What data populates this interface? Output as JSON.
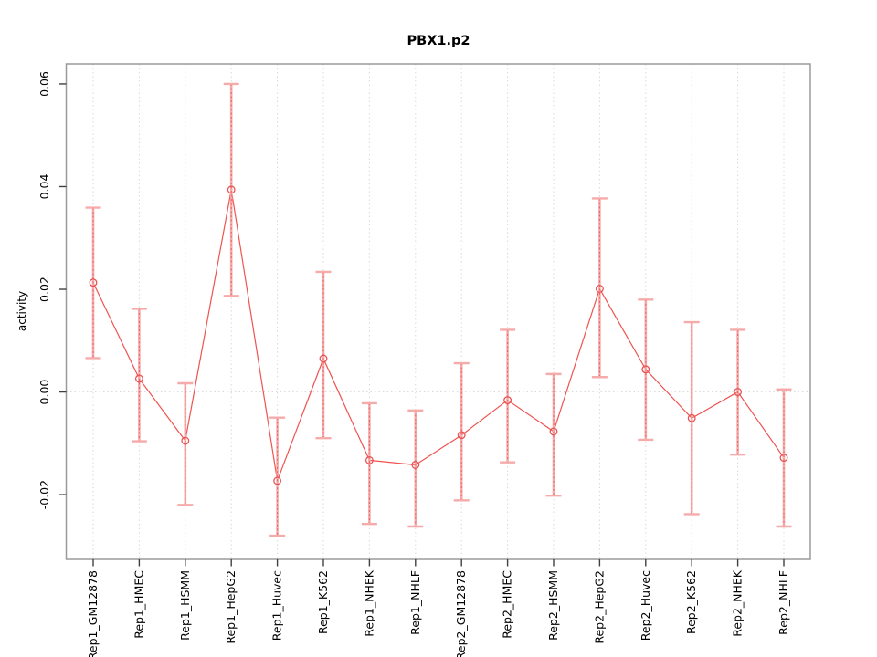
{
  "window": {
    "background": "#ffffff"
  },
  "chart_data": {
    "type": "scatter",
    "subtype": "points-with-error-bars-and-connecting-line",
    "title": "PBX1.p2",
    "xlabel": "",
    "ylabel": "activity",
    "ylim": [
      -0.0326,
      0.0639
    ],
    "yticks": [
      -0.02,
      0.0,
      0.02,
      0.04,
      0.06
    ],
    "ytick_labels": [
      "-0.02",
      "0.00",
      "0.02",
      "0.04",
      "0.06"
    ],
    "grid": "vertical dotted gridline at each category; horizontal dotted line at y=0",
    "legend_position": "none",
    "marker": "open-circle",
    "categories": [
      "Rep1_GM12878",
      "Rep1_HMEC",
      "Rep1_HSMM",
      "Rep1_HepG2",
      "Rep1_Huvec",
      "Rep1_K562",
      "Rep1_NHEK",
      "Rep1_NHLF",
      "Rep2_GM12878",
      "Rep2_HMEC",
      "Rep2_HSMM",
      "Rep2_HepG2",
      "Rep2_Huvec",
      "Rep2_K562",
      "Rep2_NHEK",
      "Rep2_NHLF"
    ],
    "series": [
      {
        "name": "activity",
        "values": [
          0.0213,
          0.0026,
          -0.0095,
          0.0394,
          -0.0173,
          0.0065,
          -0.0133,
          -0.0142,
          -0.0084,
          -0.0016,
          -0.0077,
          0.0201,
          0.0044,
          -0.0051,
          0.0,
          -0.0128
        ],
        "error_low": [
          0.0066,
          -0.0096,
          -0.022,
          0.0187,
          -0.028,
          -0.009,
          -0.0257,
          -0.0262,
          -0.0211,
          -0.0137,
          -0.0202,
          0.0029,
          -0.0093,
          -0.0238,
          -0.0122,
          -0.0262
        ],
        "error_high": [
          0.0359,
          0.0162,
          0.0017,
          0.06,
          -0.005,
          0.0234,
          -0.0022,
          -0.0036,
          0.0056,
          0.0121,
          0.0035,
          0.0377,
          0.018,
          0.0136,
          0.0121,
          0.0005
        ]
      }
    ],
    "colors": {
      "series_line": "#ef5350",
      "marker_stroke": "#e85454",
      "error_bar_fill": "#f6abab",
      "error_bar_dash": "#e96060",
      "frame": "#9a9a9a",
      "gridline": "#d9d9d9",
      "tick": "#404040",
      "text": "#000000"
    }
  }
}
